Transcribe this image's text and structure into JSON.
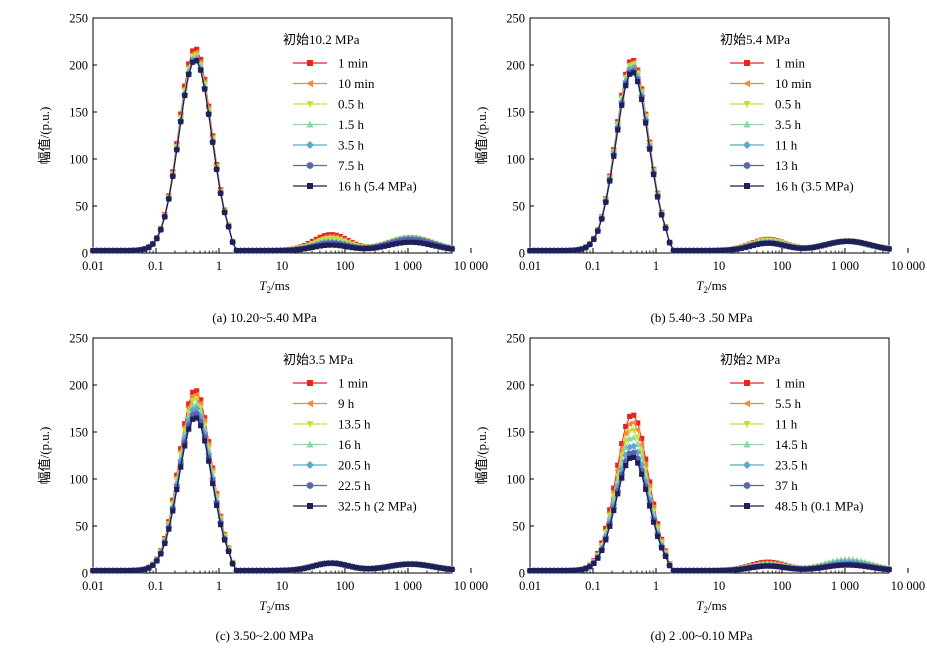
{
  "figure": {
    "ylabel": "幅值/(p.u.)",
    "xlabel_main": "T",
    "xlabel_sub": "2",
    "xlabel_unit": "/ms",
    "x_ticks": [
      "0.01",
      "0.1",
      "1",
      "10",
      "100",
      "1 000",
      "10 000"
    ],
    "y_ticks": [
      "0",
      "50",
      "100",
      "150",
      "200",
      "250"
    ]
  },
  "palette": [
    "#e8231f",
    "#f08a3c",
    "#c8df3a",
    "#8fd6a8",
    "#5fa8c8",
    "#5865b8",
    "#1f1f5a"
  ],
  "chart_data": [
    {
      "type": "line",
      "caption": "(a) 10.20~5.40 MPa",
      "legend_title": "初始10.2 MPa",
      "xlabel": "T2/ms",
      "ylabel": "幅值/(p.u.)",
      "xscale": "log",
      "xlim": [
        0.01,
        5000
      ],
      "ylim": [
        0,
        250
      ],
      "series": [
        {
          "name": "1 min",
          "p1": 215,
          "p2": 17,
          "p3": 12
        },
        {
          "name": "10 min",
          "p1": 212,
          "p2": 15,
          "p3": 13
        },
        {
          "name": "0.5 h",
          "p1": 209,
          "p2": 13,
          "p3": 14
        },
        {
          "name": "1.5 h",
          "p1": 207,
          "p2": 11,
          "p3": 14
        },
        {
          "name": "3.5 h",
          "p1": 205,
          "p2": 9,
          "p3": 13
        },
        {
          "name": "7.5 h",
          "p1": 203,
          "p2": 8,
          "p3": 12
        },
        {
          "name": "16 h (5.4 MPa)",
          "p1": 203,
          "p2": 6,
          "p3": 9
        }
      ]
    },
    {
      "type": "line",
      "caption": "(b) 5.40~3 .50 MPa",
      "legend_title": "初始5.4 MPa",
      "xlabel": "T2/ms",
      "ylabel": "幅值/(p.u.)",
      "xscale": "log",
      "xlim": [
        0.01,
        5000
      ],
      "ylim": [
        0,
        250
      ],
      "series": [
        {
          "name": "1 min",
          "p1": 203,
          "p2": 12,
          "p3": 10
        },
        {
          "name": "10 min",
          "p1": 201,
          "p2": 12,
          "p3": 10
        },
        {
          "name": "0.5 h",
          "p1": 199,
          "p2": 11,
          "p3": 10
        },
        {
          "name": "3.5 h",
          "p1": 197,
          "p2": 10,
          "p3": 10
        },
        {
          "name": "11 h",
          "p1": 195,
          "p2": 9,
          "p3": 10
        },
        {
          "name": "13 h",
          "p1": 192,
          "p2": 8,
          "p3": 10
        },
        {
          "name": "16 h (3.5 MPa)",
          "p1": 190,
          "p2": 8,
          "p3": 10
        }
      ]
    },
    {
      "type": "line",
      "caption": "(c) 3.50~2.00 MPa",
      "legend_title": "初始3.5 MPa",
      "xlabel": "T2/ms",
      "ylabel": "幅值/(p.u.)",
      "xscale": "log",
      "xlim": [
        0.01,
        5000
      ],
      "ylim": [
        0,
        250
      ],
      "series": [
        {
          "name": "1 min",
          "p1": 192,
          "p2": 8,
          "p3": 7
        },
        {
          "name": "9 h",
          "p1": 188,
          "p2": 8,
          "p3": 7
        },
        {
          "name": "13.5 h",
          "p1": 183,
          "p2": 8,
          "p3": 7
        },
        {
          "name": "16 h",
          "p1": 178,
          "p2": 8,
          "p3": 7
        },
        {
          "name": "20.5 h",
          "p1": 173,
          "p2": 8,
          "p3": 7
        },
        {
          "name": "22.5 h",
          "p1": 168,
          "p2": 8,
          "p3": 7
        },
        {
          "name": "32.5 h (2 MPa)",
          "p1": 163,
          "p2": 8,
          "p3": 7
        }
      ]
    },
    {
      "type": "line",
      "caption": "(d) 2 .00~0.10 MPa",
      "legend_title": "初始2 MPa",
      "xlabel": "T2/ms",
      "ylabel": "幅值/(p.u.)",
      "xscale": "log",
      "xlim": [
        0.01,
        5000
      ],
      "ylim": [
        0,
        250
      ],
      "series": [
        {
          "name": "1 min",
          "p1": 166,
          "p2": 9,
          "p3": 8
        },
        {
          "name": "5.5 h",
          "p1": 158,
          "p2": 8,
          "p3": 9
        },
        {
          "name": "11 h",
          "p1": 150,
          "p2": 7,
          "p3": 10
        },
        {
          "name": "14.5 h",
          "p1": 142,
          "p2": 6,
          "p3": 12
        },
        {
          "name": "23.5 h",
          "p1": 133,
          "p2": 6,
          "p3": 9
        },
        {
          "name": "37 h",
          "p1": 126,
          "p2": 5,
          "p3": 7
        },
        {
          "name": "48.5 h (0.1 MPa)",
          "p1": 121,
          "p2": 5,
          "p3": 6
        }
      ]
    }
  ]
}
